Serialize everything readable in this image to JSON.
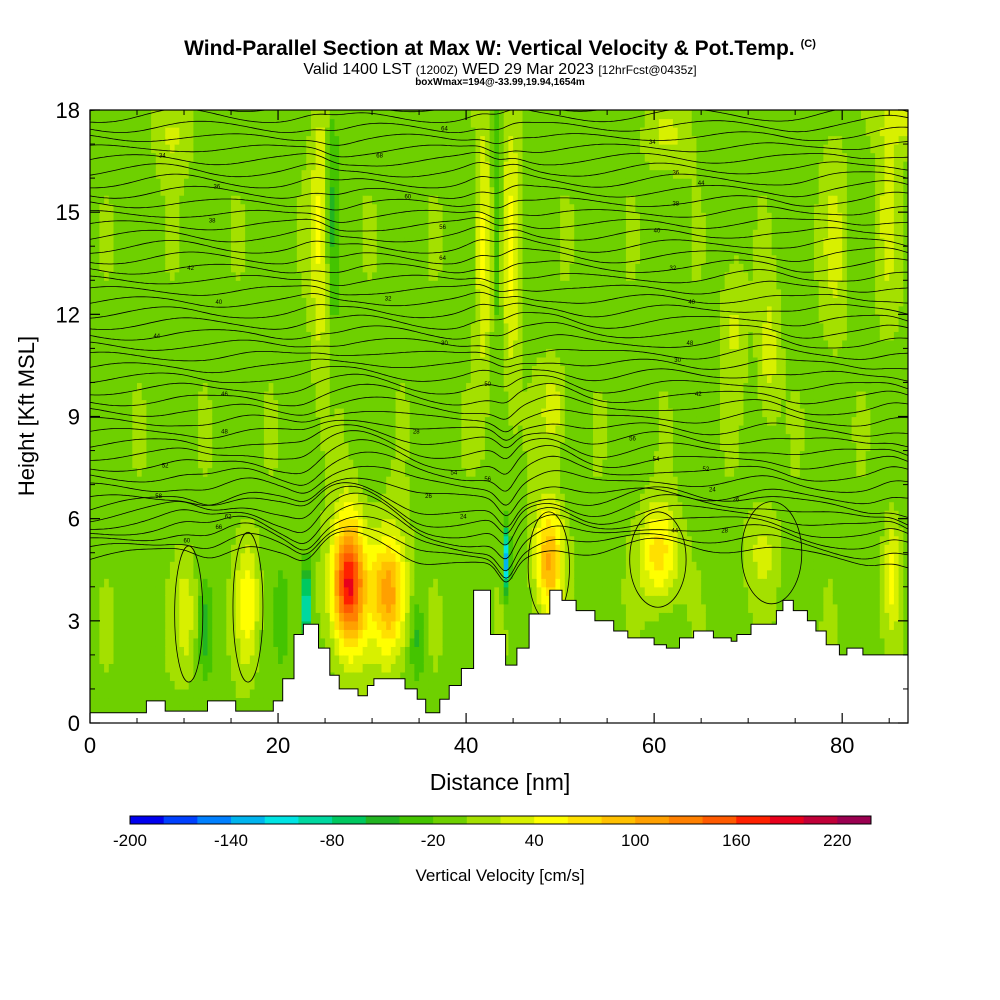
{
  "header": {
    "title": "Wind-Parallel Section at Max W: Vertical Velocity & Pot.Temp.",
    "copyright": "(C)",
    "valid_prefix": "Valid 1400 LST",
    "valid_utc": "(1200Z)",
    "valid_date": "WED 29 Mar 2023",
    "forecast": "[12hrFcst@0435z]",
    "box_info": "boxWmax=194@-33.99,19.94,1654m"
  },
  "chart_data": {
    "type": "heatmap",
    "xlabel": "Distance [nm]",
    "ylabel": "Height [Kft MSL]",
    "xlim": [
      0,
      87
    ],
    "ylim": [
      0,
      18
    ],
    "x_ticks": [
      0,
      20,
      40,
      60,
      80
    ],
    "y_ticks": [
      0,
      3,
      6,
      9,
      12,
      15,
      18
    ],
    "grid": false,
    "colorbar": {
      "label": "Vertical Velocity [cm/s]",
      "placement": "bottom",
      "min": -200,
      "max": 240,
      "step": 20,
      "tick_labels": [
        "-200",
        "-140",
        "-80",
        "-20",
        "40",
        "100",
        "160",
        "220"
      ],
      "tick_values": [
        -200,
        -140,
        -80,
        -20,
        40,
        100,
        160,
        220
      ],
      "colors": [
        "#0000ee",
        "#0040ff",
        "#0080ff",
        "#00b4ee",
        "#00e4e4",
        "#00d8a0",
        "#00c860",
        "#22b422",
        "#44c400",
        "#6ed000",
        "#a4e000",
        "#d8f000",
        "#ffff00",
        "#ffe000",
        "#ffc000",
        "#ffa000",
        "#ff8000",
        "#ff5a00",
        "#ff2000",
        "#e8001c",
        "#c00038",
        "#9a0050"
      ]
    },
    "background_velocity": 0,
    "updrafts": [
      {
        "x": 27.5,
        "y_center": 4.1,
        "x_half_width": 1.9,
        "y_half_height": 2.1,
        "peak": 194
      },
      {
        "x": 31.8,
        "y_center": 3.8,
        "x_half_width": 2.0,
        "y_half_height": 2.0,
        "peak": 120
      },
      {
        "x": 16.8,
        "y_center": 3.5,
        "x_half_width": 1.3,
        "y_half_height": 1.9,
        "peak": 60
      },
      {
        "x": 10.2,
        "y_center": 3.2,
        "x_half_width": 1.2,
        "y_half_height": 1.7,
        "peak": 40
      },
      {
        "x": 48.8,
        "y_center": 4.8,
        "x_half_width": 1.6,
        "y_half_height": 1.8,
        "peak": 110
      },
      {
        "x": 60.5,
        "y_center": 5.0,
        "x_half_width": 2.2,
        "y_half_height": 1.5,
        "peak": 80
      },
      {
        "x": 71.5,
        "y_center": 5.0,
        "x_half_width": 1.8,
        "y_half_height": 1.5,
        "peak": 30
      },
      {
        "x": 85.3,
        "y_center": 4.4,
        "x_half_width": 0.9,
        "y_half_height": 1.8,
        "peak": 50
      },
      {
        "x": 24.5,
        "y_center": 14.5,
        "x_half_width": 1.1,
        "y_half_height": 4.5,
        "peak": 50
      },
      {
        "x": 41.8,
        "y_center": 14.0,
        "x_half_width": 0.9,
        "y_half_height": 4.5,
        "peak": 50
      },
      {
        "x": 44.8,
        "y_center": 14.0,
        "x_half_width": 1.0,
        "y_half_height": 4.5,
        "peak": 50
      },
      {
        "x": 49.3,
        "y_center": 9.2,
        "x_half_width": 1.5,
        "y_half_height": 1.4,
        "peak": 40
      },
      {
        "x": 68.5,
        "y_center": 11.8,
        "x_half_width": 1.4,
        "y_half_height": 2.2,
        "peak": 30
      },
      {
        "x": 72.2,
        "y_center": 10.8,
        "x_half_width": 1.2,
        "y_half_height": 2.0,
        "peak": 40
      },
      {
        "x": 79.2,
        "y_center": 14.0,
        "x_half_width": 1.5,
        "y_half_height": 3.0,
        "peak": 30
      },
      {
        "x": 84.8,
        "y_center": 15.0,
        "x_half_width": 1.3,
        "y_half_height": 3.5,
        "peak": 30
      },
      {
        "x": 88.0,
        "y_center": 17.6,
        "x_half_width": 4.0,
        "y_half_height": 0.8,
        "peak": 40
      },
      {
        "x": 8.8,
        "y_center": 17.3,
        "x_half_width": 2.0,
        "y_half_height": 1.3,
        "peak": 30
      },
      {
        "x": 61.5,
        "y_center": 17.3,
        "x_half_width": 2.5,
        "y_half_height": 1.2,
        "peak": 30
      }
    ],
    "downdrafts": [
      {
        "x": 23.0,
        "y_center": 3.4,
        "x_half_width": 0.6,
        "y_half_height": 1.4,
        "peak": -110
      },
      {
        "x": 44.3,
        "y_center": 4.8,
        "x_half_width": 0.4,
        "y_half_height": 1.0,
        "peak": -130
      },
      {
        "x": 12.3,
        "y_center": 2.8,
        "x_half_width": 0.7,
        "y_half_height": 1.4,
        "peak": -40
      },
      {
        "x": 34.8,
        "y_center": 2.5,
        "x_half_width": 0.8,
        "y_half_height": 1.4,
        "peak": -40
      },
      {
        "x": 20.5,
        "y_center": 3.2,
        "x_half_width": 0.8,
        "y_half_height": 1.5,
        "peak": -30
      },
      {
        "x": 25.8,
        "y_center": 15.0,
        "x_half_width": 0.7,
        "y_half_height": 4.0,
        "peak": -40
      },
      {
        "x": 43.3,
        "y_center": 15.0,
        "x_half_width": 0.5,
        "y_half_height": 4.0,
        "peak": -40
      }
    ],
    "terrain": {
      "x": [
        0,
        6,
        6,
        8,
        8,
        12.5,
        12.5,
        15.5,
        15.5,
        19.5,
        19.5,
        20.5,
        20.5,
        21.7,
        21.7,
        22.7,
        22.7,
        24.3,
        24.3,
        25.5,
        25.5,
        26.5,
        26.5,
        28.5,
        28.5,
        29.5,
        29.5,
        30.2,
        30.2,
        33.5,
        33.5,
        34.8,
        34.8,
        35.7,
        35.7,
        37.2,
        37.2,
        38.2,
        38.2,
        39.5,
        39.5,
        40.8,
        40.8,
        42.6,
        42.6,
        44.2,
        44.2,
        45.4,
        45.4,
        46.7,
        46.7,
        48.9,
        48.9,
        50.2,
        50.2,
        51.7,
        51.7,
        53.7,
        53.7,
        55.7,
        55.7,
        57.2,
        57.2,
        60.0,
        60.0,
        61.3,
        61.3,
        62.7,
        62.7,
        64.2,
        64.2,
        66.3,
        66.3,
        68.2,
        68.2,
        68.8,
        68.8,
        70.3,
        70.3,
        73.0,
        73.0,
        73.7,
        73.7,
        74.8,
        74.8,
        76.3,
        76.3,
        77.2,
        77.2,
        78.3,
        78.3,
        79.7,
        79.7,
        80.5,
        80.5,
        82.2,
        82.2,
        87
      ],
      "y": [
        0.3,
        0.3,
        0.65,
        0.65,
        0.35,
        0.35,
        0.65,
        0.65,
        0.35,
        0.35,
        0.65,
        0.65,
        1.3,
        1.3,
        2.6,
        2.6,
        2.9,
        2.9,
        2.2,
        2.2,
        1.4,
        1.4,
        1.0,
        1.0,
        0.8,
        0.8,
        1.1,
        1.1,
        1.3,
        1.3,
        1.0,
        1.0,
        0.7,
        0.7,
        0.3,
        0.3,
        0.7,
        0.7,
        1.1,
        1.1,
        1.6,
        1.6,
        3.9,
        3.9,
        2.6,
        2.6,
        1.7,
        1.7,
        2.2,
        2.2,
        3.2,
        3.2,
        3.9,
        3.9,
        3.6,
        3.6,
        3.3,
        3.3,
        3.0,
        3.0,
        2.7,
        2.7,
        2.5,
        2.5,
        2.3,
        2.3,
        2.2,
        2.2,
        2.5,
        2.5,
        2.7,
        2.7,
        2.5,
        2.5,
        2.4,
        2.4,
        2.6,
        2.6,
        2.9,
        2.9,
        3.3,
        3.3,
        3.6,
        3.6,
        3.3,
        3.3,
        3.0,
        3.0,
        2.7,
        2.7,
        2.3,
        2.3,
        2.0,
        2.0,
        2.2,
        2.2,
        2.0,
        2.0
      ]
    },
    "theta_contours": {
      "label_color": "#000000",
      "labels": [
        "60",
        "66",
        "62",
        "58",
        "52",
        "48",
        "46",
        "44",
        "40",
        "42",
        "38",
        "36",
        "34",
        "32",
        "30",
        "28",
        "26",
        "24",
        "54",
        "56",
        "50",
        "64",
        "68",
        "64",
        "60",
        "56",
        "56",
        "54",
        "52",
        "48",
        "44",
        "42",
        "40",
        "38",
        "36",
        "34",
        "32",
        "30",
        "28",
        "26",
        "24",
        "40",
        "44"
      ]
    }
  }
}
